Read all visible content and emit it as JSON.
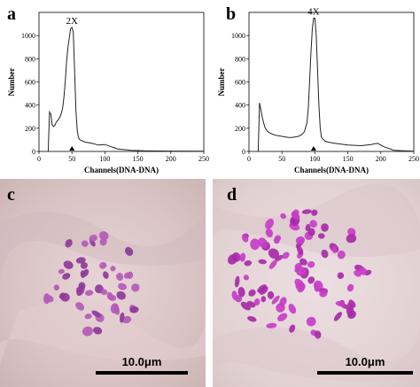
{
  "figure": {
    "panels": {
      "a": {
        "label": "a"
      },
      "b": {
        "label": "b"
      },
      "c": {
        "label": "c",
        "scale_bar": "10.0μm"
      },
      "d": {
        "label": "d",
        "scale_bar": "10.0μm"
      }
    }
  },
  "chart_data": [
    {
      "type": "line",
      "panel": "a",
      "annotation": "2X",
      "xlabel": "Channels(DNA-DNA)",
      "ylabel": "Number",
      "xlim": [
        0,
        250
      ],
      "ylim": [
        0,
        1200
      ],
      "xticks": [
        0,
        50,
        100,
        150,
        200,
        250
      ],
      "yticks": [
        0,
        200,
        400,
        600,
        800,
        1000
      ],
      "x": [
        14,
        16,
        18,
        20,
        22,
        24,
        26,
        28,
        30,
        32,
        34,
        36,
        38,
        40,
        42,
        44,
        46,
        48,
        50,
        52,
        54,
        56,
        58,
        60,
        62,
        66,
        70,
        80,
        90,
        100,
        110,
        120,
        130,
        140,
        160,
        180,
        200,
        250
      ],
      "y": [
        0,
        340,
        320,
        230,
        215,
        225,
        250,
        265,
        280,
        300,
        330,
        380,
        480,
        620,
        780,
        900,
        980,
        1060,
        1070,
        1030,
        700,
        350,
        180,
        120,
        100,
        90,
        80,
        70,
        55,
        60,
        40,
        20,
        15,
        10,
        5,
        4,
        3,
        2
      ]
    },
    {
      "type": "line",
      "panel": "b",
      "annotation": "4X",
      "xlabel": "Channels(DNA-DNA)",
      "ylabel": "Number",
      "xlim": [
        0,
        250
      ],
      "ylim": [
        0,
        1200
      ],
      "xticks": [
        0,
        50,
        100,
        150,
        200,
        250
      ],
      "yticks": [
        0,
        200,
        400,
        600,
        800,
        1000
      ],
      "x": [
        14,
        16,
        18,
        20,
        22,
        24,
        26,
        28,
        30,
        35,
        40,
        45,
        50,
        55,
        60,
        65,
        70,
        75,
        80,
        84,
        88,
        90,
        92,
        94,
        96,
        98,
        100,
        102,
        104,
        106,
        108,
        110,
        115,
        120,
        130,
        150,
        170,
        185,
        195,
        205,
        220,
        250
      ],
      "y": [
        0,
        420,
        360,
        300,
        250,
        210,
        190,
        175,
        165,
        150,
        140,
        135,
        130,
        125,
        120,
        120,
        125,
        130,
        145,
        170,
        250,
        380,
        600,
        850,
        1050,
        1150,
        1150,
        1000,
        700,
        400,
        200,
        120,
        90,
        80,
        70,
        55,
        50,
        60,
        70,
        40,
        10,
        2
      ]
    }
  ]
}
